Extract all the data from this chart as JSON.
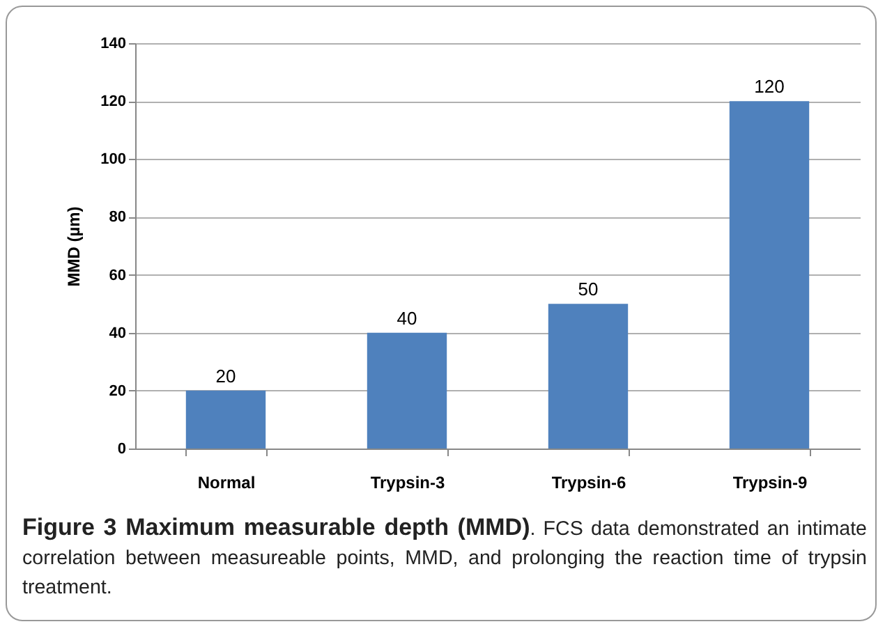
{
  "chart_data": {
    "type": "bar",
    "title": "Figure 3 Maximum measurable depth (MMD)",
    "annotations": [
      ". FCS data demonstrated an intimate correlation between measureable points, MMD, and prolonging the reaction time of trypsin treatment."
    ],
    "ylabel": "MMD (µm)",
    "categories": [
      "Normal",
      "Trypsin-3",
      "Trypsin-6",
      "Trypsin-9"
    ],
    "values": [
      20,
      40,
      50,
      120
    ],
    "color": "#4f81bd",
    "ylim": [
      0,
      140
    ],
    "yticks": [
      0,
      20,
      40,
      60,
      80,
      100,
      120,
      140
    ],
    "grid": "y",
    "data_labels": true
  }
}
